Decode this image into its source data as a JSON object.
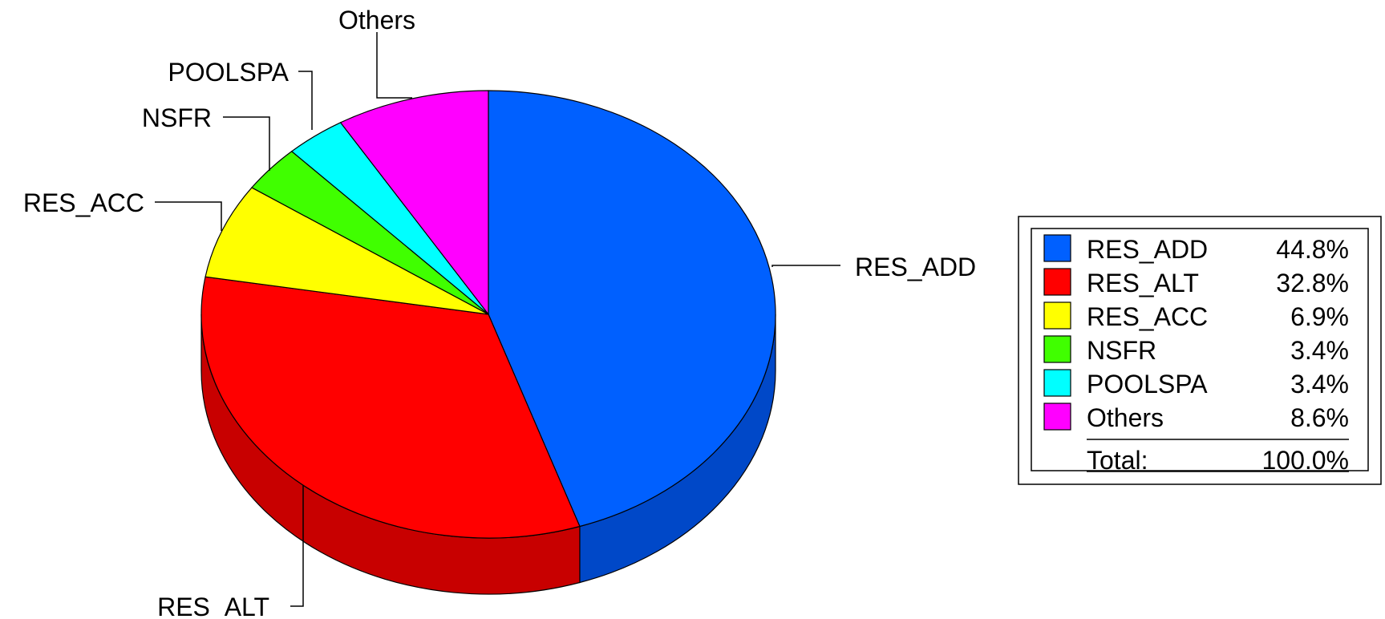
{
  "chart_data": {
    "type": "pie",
    "style": "3d",
    "slices": [
      {
        "label": "RES_ADD",
        "value": 44.8,
        "pct_label": "44.8%",
        "color": "#0060ff",
        "side_color": "#0048c8"
      },
      {
        "label": "RES_ALT",
        "value": 32.8,
        "pct_label": "32.8%",
        "color": "#ff0000",
        "side_color": "#c80000"
      },
      {
        "label": "RES_ACC",
        "value": 6.9,
        "pct_label": "6.9%",
        "color": "#ffff00",
        "side_color": "#c8c800"
      },
      {
        "label": "NSFR",
        "value": 3.4,
        "pct_label": "3.4%",
        "color": "#40ff00",
        "side_color": "#30c800"
      },
      {
        "label": "POOLSPA",
        "value": 3.4,
        "pct_label": "3.4%",
        "color": "#00ffff",
        "side_color": "#00c8c8"
      },
      {
        "label": "Others",
        "value": 8.6,
        "pct_label": "8.6%",
        "color": "#ff00ff",
        "side_color": "#c800c8"
      }
    ],
    "legend": {
      "placement": "right",
      "total_label": "Total:",
      "total_value": "100.0%"
    }
  }
}
